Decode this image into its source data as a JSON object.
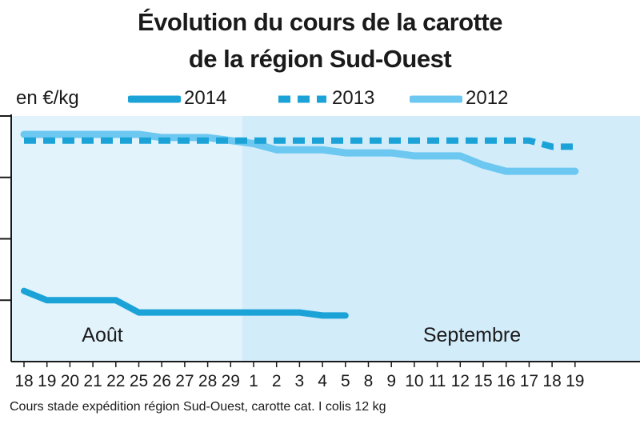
{
  "chart_data": {
    "type": "line",
    "title_line1": "Évolution du cours de la carotte",
    "title_line2": "de la région Sud-Ouest",
    "ylabel": "en €/kg",
    "xlabel": "",
    "categories": [
      "18",
      "19",
      "20",
      "21",
      "22",
      "25",
      "26",
      "27",
      "28",
      "29",
      "1",
      "2",
      "3",
      "4",
      "5",
      "8",
      "9",
      "10",
      "11",
      "12",
      "15",
      "16",
      "17",
      "18",
      "19"
    ],
    "months": [
      {
        "label": "Août",
        "start_index": 0
      },
      {
        "label": "Septembre",
        "start_index": 10
      }
    ],
    "note": "Cours stade expédition région Sud-Ouest, carotte cat. I colis 12 kg",
    "ylim": [
      0.1,
      0.5
    ],
    "grid": false,
    "legend": "top",
    "series": [
      {
        "name": "2014",
        "style": "solid",
        "color": "#1ba3d8",
        "values": [
          0.215,
          0.2,
          0.2,
          0.2,
          0.2,
          0.18,
          0.18,
          0.18,
          0.18,
          0.18,
          0.18,
          0.18,
          0.18,
          0.175,
          0.175,
          null,
          null,
          null,
          null,
          null,
          null,
          null,
          null,
          null,
          null
        ]
      },
      {
        "name": "2013",
        "style": "dashed",
        "color": "#1ba3d8",
        "values": [
          0.46,
          0.46,
          0.46,
          0.46,
          0.46,
          0.46,
          0.46,
          0.46,
          0.46,
          0.46,
          0.46,
          0.46,
          0.46,
          0.46,
          0.46,
          0.46,
          0.46,
          0.46,
          0.46,
          0.46,
          0.46,
          0.46,
          0.46,
          0.45,
          0.45
        ]
      },
      {
        "name": "2012",
        "style": "solid-light",
        "color": "#6cc8f0",
        "values": [
          0.47,
          0.47,
          0.47,
          0.47,
          0.47,
          0.47,
          0.465,
          0.465,
          0.465,
          0.46,
          0.455,
          0.445,
          0.445,
          0.445,
          0.44,
          0.44,
          0.44,
          0.435,
          0.435,
          0.435,
          0.42,
          0.41,
          0.41,
          0.41,
          0.41
        ]
      }
    ],
    "colors": {
      "plot_bg_first": "#e3f3fc",
      "plot_bg_second": "#d3ecfa",
      "axis": "#1a1a1a"
    }
  }
}
